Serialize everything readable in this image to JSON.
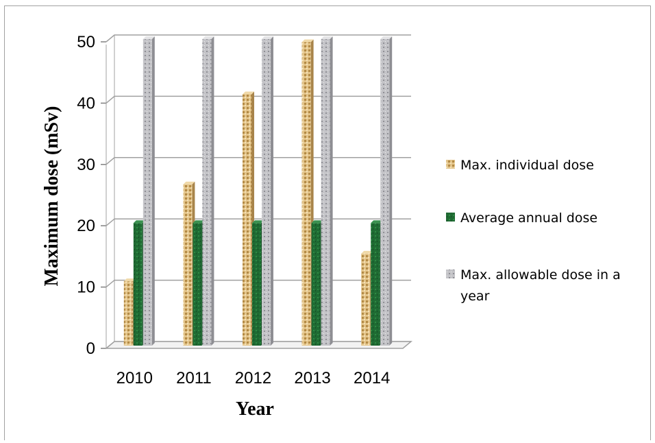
{
  "chart_data": {
    "type": "bar",
    "categories": [
      "2010",
      "2011",
      "2012",
      "2013",
      "2014"
    ],
    "series": [
      {
        "name": "Max. individual dose",
        "values": [
          10.5,
          26.3,
          41.0,
          49.5,
          15.0
        ]
      },
      {
        "name": "Average annual dose",
        "values": [
          20,
          20,
          20,
          20,
          20
        ]
      },
      {
        "name": "Max. allowable dose in a year",
        "values": [
          50,
          50,
          50,
          50,
          50
        ]
      }
    ],
    "xlabel": "Year",
    "ylabel": "Maximum dose (mSv)",
    "ylim": [
      0,
      50
    ],
    "yticks": [
      0,
      10,
      20,
      30,
      40,
      50
    ],
    "grid": true,
    "legend_position": "right",
    "colors": [
      "#d9b878",
      "#1f6b33",
      "#b8b8bc"
    ]
  }
}
